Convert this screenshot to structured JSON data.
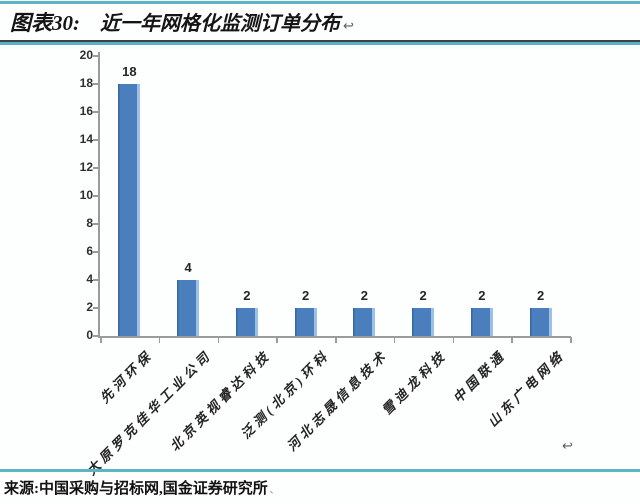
{
  "header": {
    "title_prefix": "图表30:",
    "title_text": "近一年网格化监测订单分布"
  },
  "footer": {
    "source": "来源:中国采购与招标网,国金证券研究所"
  },
  "marks": {
    "return_mark": "↩",
    "tiny_mark": "、"
  },
  "chart_data": {
    "type": "bar",
    "title": "近一年网格化监测订单分布",
    "categories": [
      "先河环保",
      "太原罗克佳华工业公司",
      "北京英视睿达科技",
      "泛测(北京)环科",
      "河北志晟信息技术",
      "雪迪龙科技",
      "中国联通",
      "山东广电网络"
    ],
    "values": [
      18,
      4,
      2,
      2,
      2,
      2,
      2,
      2
    ],
    "value_labels": [
      "18",
      "4",
      "2",
      "2",
      "2",
      "2",
      "2",
      "2"
    ],
    "xlabel": "",
    "ylabel": "",
    "ylim": [
      0,
      20
    ],
    "ytick_step": 2,
    "grid": false,
    "legend": "none",
    "bar_color": "#4b7ebc"
  },
  "colors": {
    "bar_blue": "#4b7ebc",
    "bar_edge_dark": "#39679f",
    "bar_edge_light": "#9cc0e6",
    "accent_teal": "#5bb5c4",
    "axis_gray": "#9b9b9b",
    "text_dark": "#1c1c1c"
  }
}
